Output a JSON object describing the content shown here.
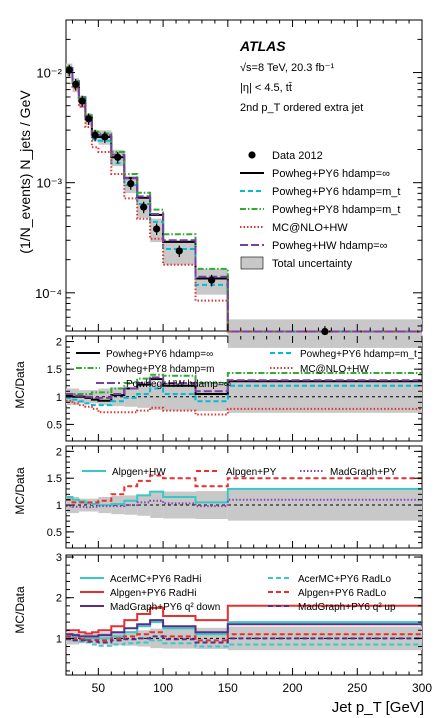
{
  "figure": {
    "main": {
      "ylabel": "(1/N_events) N_jets / GeV",
      "yticks": [
        "10⁻²",
        "10⁻³",
        "10⁻⁴"
      ],
      "info": [
        "ATLAS",
        "√s=8 TeV, 20.3 fb⁻¹",
        "|η| < 4.5, tt̄",
        "2nd p_T ordered extra jet"
      ]
    },
    "ratio_ylabel": "MC/Data",
    "xlabel": "Jet p_T [GeV]",
    "xticks": [
      "50",
      "100",
      "150",
      "200",
      "250",
      "300"
    ]
  },
  "chart_data": [
    {
      "type": "line",
      "panel": "main",
      "x_edges": [
        25,
        30,
        35,
        40,
        45,
        50,
        60,
        70,
        80,
        90,
        100,
        125,
        150,
        300
      ],
      "xlim": [
        25,
        300
      ],
      "ylim": [
        4.5e-05,
        0.03
      ],
      "log_y": true,
      "data": {
        "name": "Data 2012",
        "x": [
          27.5,
          32.5,
          37.5,
          42.5,
          47.5,
          55,
          65,
          75,
          85,
          95,
          112.5,
          137.5,
          225
        ],
        "y": [
          0.0105,
          0.0078,
          0.0055,
          0.0038,
          0.0027,
          0.0026,
          0.0017,
          0.00098,
          0.0006,
          0.00038,
          0.00024,
          0.00013,
          4.45e-05
        ]
      },
      "series": [
        {
          "name": "Powheg+PY6 hdamp=∞",
          "color": "#000000",
          "style": "solid",
          "values": [
            0.011,
            0.0081,
            0.0057,
            0.0039,
            0.0027,
            0.0026,
            0.0017,
            0.0011,
            0.00073,
            0.00051,
            0.00029,
            0.000135,
            4.45e-05
          ]
        },
        {
          "name": "Powheg+PY6 hdamp=m_t",
          "color": "#00bcd4",
          "style": "dash",
          "values": [
            0.0108,
            0.0079,
            0.0055,
            0.0037,
            0.0025,
            0.0024,
            0.0015,
            0.00095,
            0.00064,
            0.00044,
            0.00025,
            0.000118,
            4.45e-05
          ]
        },
        {
          "name": "Powheg+PY8 hdamp=m_t",
          "color": "#33aa33",
          "style": "dashdot",
          "values": [
            0.0112,
            0.0084,
            0.006,
            0.0041,
            0.0029,
            0.0028,
            0.0019,
            0.0012,
            0.00081,
            0.00057,
            0.00034,
            0.000165,
            4.45e-05
          ]
        },
        {
          "name": "MC@NLO+HW",
          "color": "#e53030",
          "style": "dot",
          "values": [
            0.0102,
            0.0072,
            0.0049,
            0.0032,
            0.0021,
            0.0019,
            0.0012,
            0.00072,
            0.00047,
            0.00031,
            0.00018,
            8.5e-05,
            4.45e-05
          ]
        },
        {
          "name": "Powheg+HW hdamp=∞",
          "color": "#7b3fa0",
          "style": "longdash",
          "values": [
            0.011,
            0.0082,
            0.0058,
            0.004,
            0.0028,
            0.0027,
            0.0018,
            0.0011,
            0.00075,
            0.00052,
            0.0003,
            0.00014,
            4.45e-05
          ]
        }
      ],
      "legend": [
        "Data 2012",
        "Powheg+PY6 hdamp=∞",
        "Powheg+PY6 hdamp=m_t",
        "Powheg+PY8 hdamp=m_t",
        "MC@NLO+HW",
        "Powheg+HW hdamp=∞",
        "Total uncertainty"
      ],
      "legend_position": "top-right"
    },
    {
      "type": "line",
      "panel": "ratio1",
      "ylabel": "MC/Data",
      "ylim": [
        0.2,
        2.1
      ],
      "yticks": [
        0.5,
        1,
        1.5,
        2
      ],
      "x_edges": [
        25,
        30,
        35,
        40,
        45,
        50,
        60,
        70,
        80,
        90,
        100,
        125,
        150,
        300
      ],
      "band": {
        "lo": [
          0.85,
          0.85,
          0.88,
          0.88,
          0.88,
          0.85,
          0.83,
          0.82,
          0.8,
          0.76,
          0.75,
          0.74,
          0.71
        ],
        "hi": [
          1.15,
          1.15,
          1.12,
          1.12,
          1.12,
          1.15,
          1.17,
          1.18,
          1.2,
          1.24,
          1.25,
          1.26,
          1.29
        ]
      },
      "series": [
        {
          "name": "Powheg+PY6 hdamp=∞",
          "color": "#000000",
          "style": "solid",
          "values": [
            1.02,
            1.0,
            1.0,
            0.98,
            0.95,
            0.93,
            1.03,
            1.15,
            1.22,
            1.32,
            1.2,
            1.05,
            1.28
          ]
        },
        {
          "name": "Powheg+PY6 hdamp=m_t",
          "color": "#00bcd4",
          "style": "dash",
          "values": [
            0.98,
            0.95,
            0.92,
            0.88,
            0.85,
            0.85,
            0.92,
            0.98,
            1.05,
            1.15,
            1.05,
            0.92,
            1.2
          ]
        },
        {
          "name": "Powheg+PY8 hdamp=m",
          "color": "#33aa33",
          "style": "dashdot",
          "values": [
            1.05,
            1.05,
            1.05,
            1.05,
            1.08,
            1.08,
            1.15,
            1.25,
            1.33,
            1.4,
            1.38,
            1.25,
            1.43
          ]
        },
        {
          "name": "MC@NLO+HW",
          "color": "#e53030",
          "style": "dot",
          "values": [
            0.93,
            0.88,
            0.85,
            0.82,
            0.78,
            0.72,
            0.72,
            0.72,
            0.75,
            0.8,
            0.75,
            0.68,
            0.78
          ]
        },
        {
          "name": "Powheg+HW hdamp=∞",
          "color": "#7b3fa0",
          "style": "longdash",
          "values": [
            1.05,
            1.02,
            1.02,
            1.0,
            0.98,
            0.98,
            1.05,
            1.15,
            1.25,
            1.35,
            1.25,
            1.1,
            1.3
          ]
        }
      ],
      "legend": [
        "Powheg+PY6 hdamp=∞",
        "Powheg+PY6 hdamp=m_t",
        "Powheg+PY8 hdamp=m",
        "MC@NLO+HW",
        "Powheg+HW hdamp=∞"
      ]
    },
    {
      "type": "line",
      "panel": "ratio2",
      "ylabel": "MC/Data",
      "ylim": [
        0.2,
        2.1
      ],
      "yticks": [
        0.5,
        1,
        1.5,
        2
      ],
      "x_edges": [
        25,
        30,
        35,
        40,
        45,
        50,
        60,
        70,
        80,
        90,
        100,
        125,
        150,
        300
      ],
      "band": {
        "lo": [
          0.85,
          0.85,
          0.88,
          0.88,
          0.88,
          0.85,
          0.83,
          0.82,
          0.8,
          0.76,
          0.75,
          0.74,
          0.71
        ],
        "hi": [
          1.15,
          1.15,
          1.12,
          1.12,
          1.12,
          1.15,
          1.17,
          1.18,
          1.2,
          1.24,
          1.25,
          1.26,
          1.29
        ]
      },
      "series": [
        {
          "name": "Alpgen+HW",
          "color": "#39c8c8",
          "style": "solid",
          "values": [
            1.15,
            1.1,
            1.07,
            1.03,
            1.02,
            1.0,
            1.02,
            1.08,
            1.18,
            1.25,
            1.15,
            1.05,
            1.3
          ]
        },
        {
          "name": "Alpgen+PY",
          "color": "#e53030",
          "style": "dash",
          "values": [
            1.1,
            1.05,
            1.05,
            1.05,
            1.05,
            1.08,
            1.2,
            1.35,
            1.45,
            1.55,
            1.5,
            1.35,
            1.5
          ]
        },
        {
          "name": "MadGraph+PY",
          "color": "#8a3fb5",
          "style": "dot",
          "values": [
            0.98,
            0.97,
            0.97,
            0.96,
            0.97,
            0.98,
            0.98,
            1.0,
            1.05,
            1.08,
            1.03,
            0.98,
            1.1
          ]
        }
      ],
      "legend": [
        "Alpgen+HW",
        "Alpgen+PY",
        "MadGraph+PY"
      ]
    },
    {
      "type": "line",
      "panel": "ratio3",
      "ylabel": "MC/Data",
      "ylim": [
        0.1,
        3.05
      ],
      "yticks": [
        1,
        2,
        3
      ],
      "x_edges": [
        25,
        30,
        35,
        40,
        45,
        50,
        60,
        70,
        80,
        90,
        100,
        125,
        150,
        300
      ],
      "band": {
        "lo": [
          0.85,
          0.85,
          0.88,
          0.88,
          0.88,
          0.85,
          0.83,
          0.82,
          0.8,
          0.76,
          0.75,
          0.74,
          0.71
        ],
        "hi": [
          1.15,
          1.15,
          1.12,
          1.12,
          1.12,
          1.15,
          1.17,
          1.18,
          1.2,
          1.24,
          1.25,
          1.26,
          1.29
        ]
      },
      "series": [
        {
          "name": "AcerMC+PY6 RadHi",
          "color": "#39c8c8",
          "style": "solid",
          "values": [
            1.1,
            1.05,
            1.05,
            1.0,
            1.0,
            1.0,
            1.05,
            1.15,
            1.3,
            1.4,
            1.25,
            1.1,
            1.4
          ]
        },
        {
          "name": "AcerMC+PY6 RadLo",
          "color": "#39c8c8",
          "style": "dash",
          "values": [
            1.0,
            0.95,
            0.92,
            0.9,
            0.85,
            0.82,
            0.85,
            0.88,
            0.9,
            0.95,
            0.88,
            0.8,
            0.85
          ]
        },
        {
          "name": "Alpgen+PY6 RadHi",
          "color": "#e53030",
          "style": "solid",
          "values": [
            1.2,
            1.2,
            1.15,
            1.12,
            1.15,
            1.2,
            1.3,
            1.45,
            1.6,
            1.75,
            1.55,
            1.45,
            1.8
          ]
        },
        {
          "name": "Alpgen+PY6 RadLo",
          "color": "#e53030",
          "style": "dash",
          "values": [
            1.05,
            1.0,
            0.98,
            0.96,
            0.96,
            0.95,
            1.0,
            1.05,
            1.1,
            1.15,
            1.05,
            0.95,
            1.1
          ]
        },
        {
          "name": "MadGraph+PY6 q² down",
          "color": "#5a2d86",
          "style": "solid",
          "values": [
            1.1,
            1.08,
            1.05,
            1.05,
            1.05,
            1.08,
            1.15,
            1.25,
            1.35,
            1.45,
            1.3,
            1.15,
            1.35
          ]
        },
        {
          "name": "MadGraph+PY6 q² up",
          "color": "#5a2d86",
          "style": "dash",
          "values": [
            0.98,
            0.95,
            0.95,
            0.92,
            0.92,
            0.9,
            0.95,
            0.98,
            1.0,
            1.05,
            0.98,
            0.9,
            1.0
          ]
        }
      ],
      "legend": [
        "AcerMC+PY6 RadHi",
        "AcerMC+PY6 RadLo",
        "Alpgen+PY6 RadHi",
        "Alpgen+PY6 RadLo",
        "MadGraph+PY6 q² down",
        "MadGraph+PY6 q² up"
      ]
    }
  ]
}
